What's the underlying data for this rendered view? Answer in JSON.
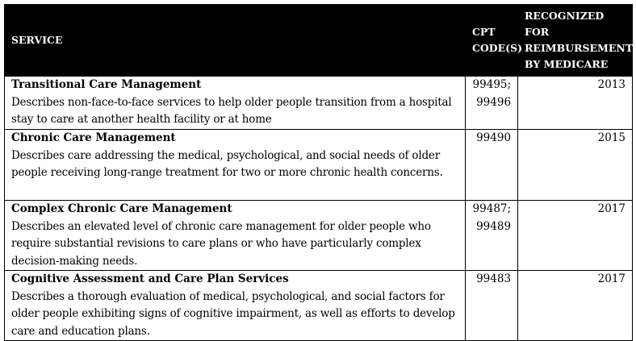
{
  "table": {
    "headers": [
      "SERVICE",
      "CPT CODE(S)",
      "RECOGNIZED FOR REIMBURSEMENT BY MEDICARE"
    ],
    "rows": [
      {
        "name": "Transitional Care Management",
        "description": "Describes non-face-to-face services to help older people transition from a hospital stay to care at another health facility or at home",
        "codes": "99495; 99496",
        "year": "2013"
      },
      {
        "name": "Chronic Care Management",
        "description": "Describes care addressing the medical, psychological, and social needs of older people receiving long-range treatment for two or more chronic health concerns.",
        "codes": "99490",
        "year": "2015"
      },
      {
        "name": "Complex Chronic Care Management",
        "description": "Describes an elevated level of chronic care management for older people who require substantial revisions to care plans or who have particularly complex decision-making needs.",
        "codes": "99487; 99489",
        "year": "2017"
      },
      {
        "name": "Cognitive Assessment and Care Plan Services",
        "description": "Describes a thorough evaluation of medical, psychological, and social factors for older people exhibiting signs of cognitive impairment, as well as efforts to develop care and education plans.",
        "codes": "99483",
        "year": "2017"
      }
    ]
  }
}
